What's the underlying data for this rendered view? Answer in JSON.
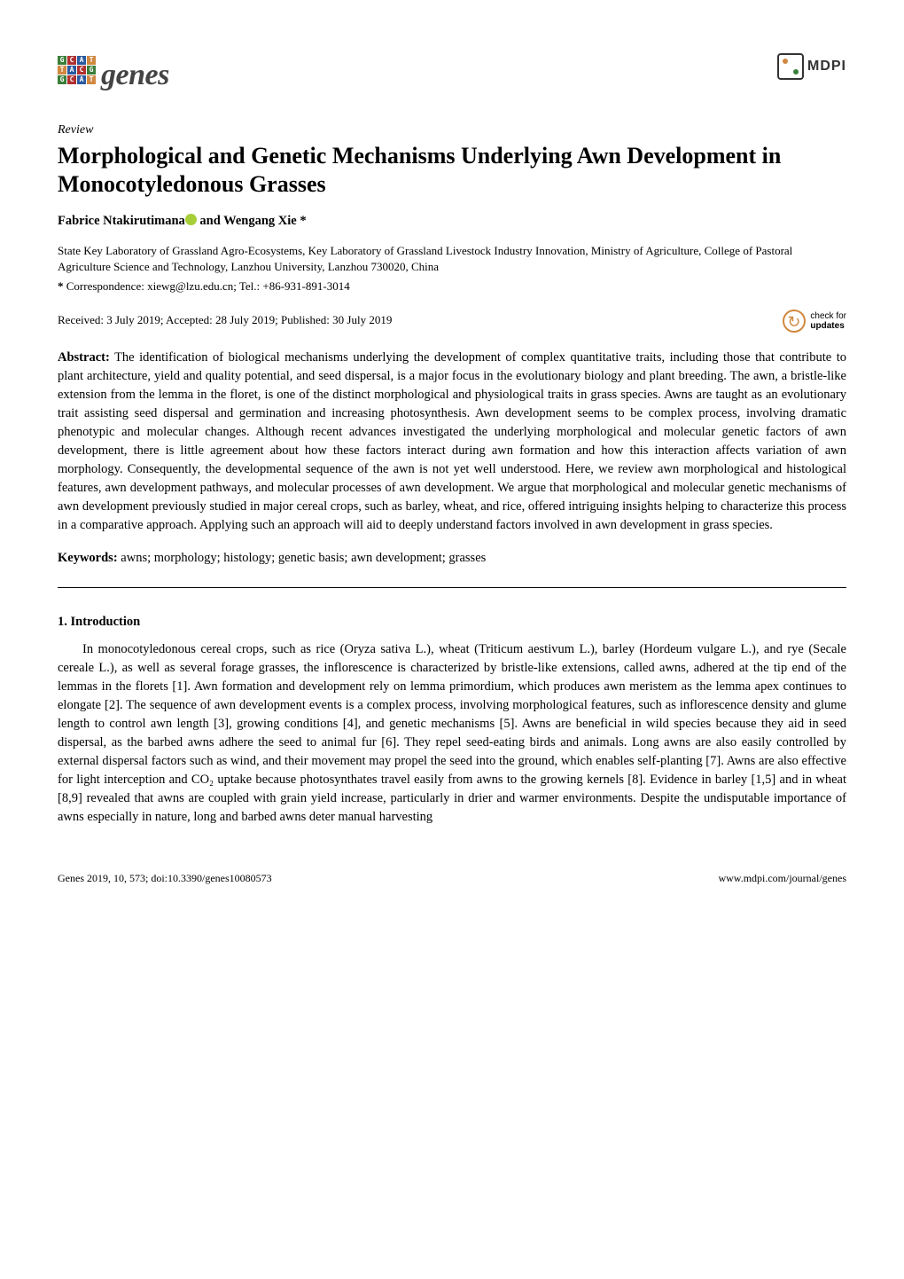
{
  "journal": {
    "name": "genes",
    "publisher": "MDPI"
  },
  "article_type": "Review",
  "title": "Morphological and Genetic Mechanisms Underlying Awn Development in Monocotyledonous Grasses",
  "authors_html": "Fabrice Ntakirutimana",
  "authors_suffix": " and Wengang Xie *",
  "affiliation": "State Key Laboratory of Grassland Agro-Ecosystems, Key Laboratory of Grassland Livestock Industry Innovation, Ministry of Agriculture, College of Pastoral Agriculture Science and Technology, Lanzhou University, Lanzhou 730020, China",
  "correspondence": "Correspondence: xiewg@lzu.edu.cn; Tel.: +86-931-891-3014",
  "dates": "Received: 3 July 2019; Accepted: 28 July 2019; Published: 30 July 2019",
  "updates_badge": {
    "line1": "check for",
    "line2": "updates"
  },
  "abstract_label": "Abstract:",
  "abstract": " The identification of biological mechanisms underlying the development of complex quantitative traits, including those that contribute to plant architecture, yield and quality potential, and seed dispersal, is a major focus in the evolutionary biology and plant breeding. The awn, a bristle-like extension from the lemma in the floret, is one of the distinct morphological and physiological traits in grass species. Awns are taught as an evolutionary trait assisting seed dispersal and germination and increasing photosynthesis. Awn development seems to be complex process, involving dramatic phenotypic and molecular changes. Although recent advances investigated the underlying morphological and molecular genetic factors of awn development, there is little agreement about how these factors interact during awn formation and how this interaction affects variation of awn morphology. Consequently, the developmental sequence of the awn is not yet well understood. Here, we review awn morphological and histological features, awn development pathways, and molecular processes of awn development. We argue that morphological and molecular genetic mechanisms of awn development previously studied in major cereal crops, such as barley, wheat, and rice, offered intriguing insights helping to characterize this process in a comparative approach. Applying such an approach will aid to deeply understand factors involved in awn development in grass species.",
  "keywords_label": "Keywords:",
  "keywords": " awns; morphology; histology; genetic basis; awn development; grasses",
  "section1_heading": "1. Introduction",
  "intro_para": "In monocotyledonous cereal crops, such as rice (Oryza sativa L.), wheat (Triticum aestivum L.), barley (Hordeum vulgare L.), and rye (Secale cereale L.), as well as several forage grasses, the inflorescence is characterized by bristle-like extensions, called awns, adhered at the tip end of the lemmas in the florets [1]. Awn formation and development rely on lemma primordium, which produces awn meristem as the lemma apex continues to elongate [2]. The sequence of awn development events is a complex process, involving morphological features, such as inflorescence density and glume length to control awn length [3], growing conditions [4], and genetic mechanisms [5]. Awns are beneficial in wild species because they aid in seed dispersal, as the barbed awns adhere the seed to animal fur [6]. They repel seed-eating birds and animals. Long awns are also easily controlled by external dispersal factors such as wind, and their movement may propel the seed into the ground, which enables self-planting [7]. Awns are also effective for light interception and CO₂ uptake because photosynthates travel easily from awns to the growing kernels [8]. Evidence in barley [1,5] and in wheat [8,9] revealed that awns are coupled with grain yield increase, particularly in drier and warmer environments. Despite the undisputable importance of awns especially in nature, long and barbed awns deter manual harvesting",
  "footer": {
    "left": "Genes 2019, 10, 573; doi:10.3390/genes10080573",
    "right": "www.mdpi.com/journal/genes"
  },
  "colors": {
    "link": "#2a5aa0",
    "orcid": "#a6ce39",
    "accent_orange": "#d08840",
    "text": "#000000",
    "background": "#ffffff"
  },
  "typography": {
    "body_fontsize_pt": 11,
    "title_fontsize_pt": 19,
    "logo_fontsize_pt": 26,
    "footer_fontsize_pt": 9,
    "font_family": "Palatino Linotype"
  }
}
